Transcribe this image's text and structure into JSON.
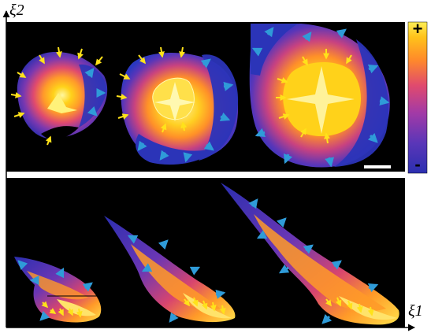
{
  "figure": {
    "axis_labels": {
      "vertical": "ξ2",
      "horizontal": "ξ1"
    },
    "colorbar": {
      "max_symbol": "+",
      "min_symbol": "-",
      "gradient": [
        "#2b2fb0",
        "#5a36b8",
        "#a33aa6",
        "#e04a6e",
        "#ff8a2a",
        "#ffc21a",
        "#ffee55"
      ]
    },
    "colors": {
      "background": "#000000",
      "inward_arrow": "#ffe21a",
      "outward_arrow": "#2f9bd8",
      "divider": "#ffffff"
    },
    "rows": [
      {
        "name": "top-row",
        "panel_count": 3,
        "shape": "rounded-blob"
      },
      {
        "name": "bottom-row",
        "panel_count": 3,
        "shape": "elongated-plume"
      }
    ]
  }
}
